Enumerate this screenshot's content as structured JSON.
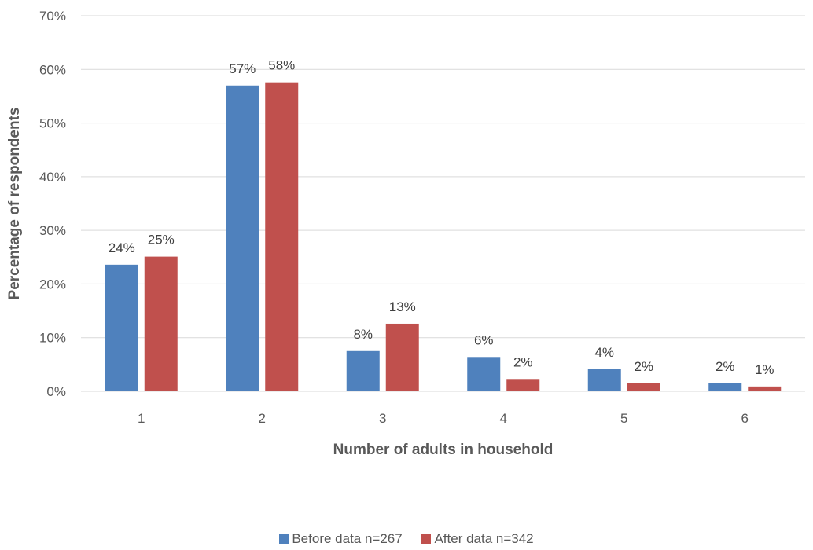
{
  "chart_data": {
    "type": "bar",
    "title": "",
    "xlabel": "Number of adults in household",
    "ylabel": "Percentage of respondents",
    "categories": [
      "1",
      "2",
      "3",
      "4",
      "5",
      "6"
    ],
    "ylim": [
      0,
      70
    ],
    "yticks": [
      "0%",
      "10%",
      "20%",
      "30%",
      "40%",
      "50%",
      "60%",
      "70%"
    ],
    "grid": true,
    "legend_position": "bottom",
    "series": [
      {
        "name": "Before data n=267",
        "color": "#4f81bd",
        "values": [
          23.6,
          57.0,
          7.5,
          6.4,
          4.1,
          1.5
        ],
        "labels": [
          "24%",
          "57%",
          "8%",
          "6%",
          "4%",
          "2%"
        ]
      },
      {
        "name": "After data n=342",
        "color": "#c0504d",
        "values": [
          25.1,
          57.6,
          12.6,
          2.3,
          1.5,
          0.9
        ],
        "labels": [
          "25%",
          "58%",
          "13%",
          "2%",
          "2%",
          "1%"
        ]
      }
    ]
  }
}
